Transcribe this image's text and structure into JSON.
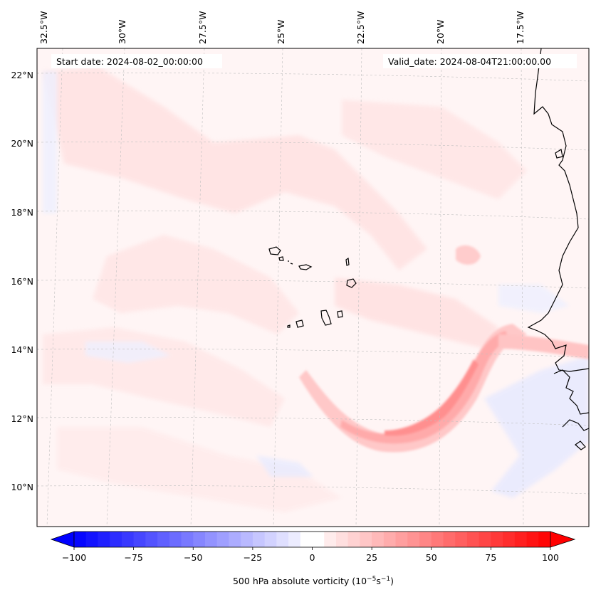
{
  "annotations": {
    "start_date": "Start date: 2024-08-02_00:00:00",
    "valid_date": "Valid_date: 2024-08-04T21:00:00.00"
  },
  "axes": {
    "lon_labels": [
      "32.5°W",
      "30°W",
      "27.5°W",
      "25°W",
      "22.5°W",
      "20°W",
      "17.5°W"
    ],
    "lat_labels": [
      "22°N",
      "20°N",
      "18°N",
      "16°N",
      "14°N",
      "12°N",
      "10°N"
    ]
  },
  "colorbar": {
    "label_prefix": "500 hPa absolute vorticity (10",
    "exp1": "−5",
    "mid": "s",
    "exp2": "−1",
    "label_suffix": ")",
    "ticks": [
      "−100",
      "−75",
      "−50",
      "−25",
      "0",
      "25",
      "50",
      "75",
      "100"
    ],
    "min": -100,
    "max": 100,
    "step": 5,
    "low_color": "#0000ff",
    "high_color": "#ff0000",
    "zero_color": "#ffffff"
  },
  "colors": {
    "coastline": "#000000",
    "gridline": "#bfbfbf",
    "background_field": "#fff3f3"
  }
}
